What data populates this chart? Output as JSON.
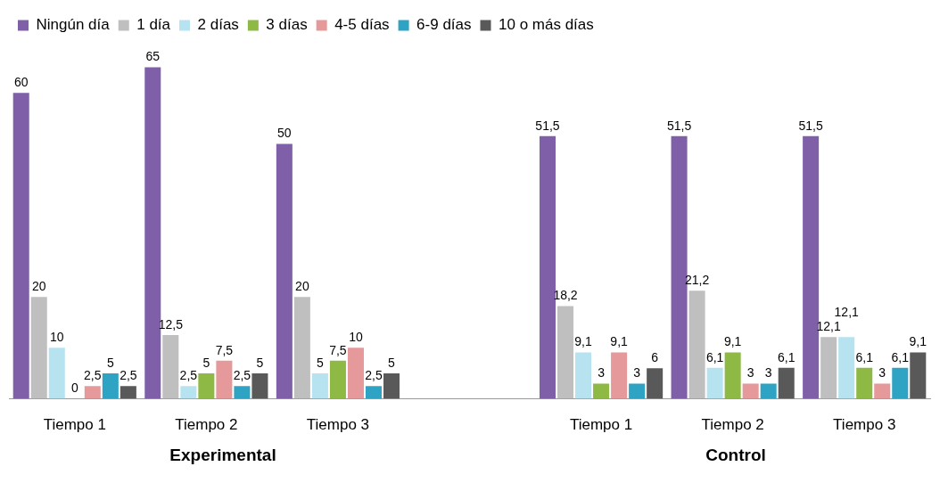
{
  "chart_data": {
    "type": "bar",
    "categories": [
      "Tiempo 1",
      "Tiempo 2",
      "Tiempo 3",
      null,
      "Tiempo 1",
      "Tiempo 2",
      "Tiempo 3"
    ],
    "series": [
      {
        "name": "Ningún día",
        "color": "#7f5fa8",
        "values": [
          60,
          65,
          50,
          null,
          51.5,
          51.5,
          51.5
        ],
        "value_labels": [
          "60",
          "65",
          "50",
          null,
          "51,5",
          "51,5",
          "51,5"
        ]
      },
      {
        "name": "1 día",
        "color": "#bfbfbf",
        "values": [
          20,
          12.5,
          20,
          null,
          18.2,
          21.2,
          12.1
        ],
        "value_labels": [
          "20",
          "12,5",
          "20",
          null,
          "18,2",
          "21,2",
          "12,1"
        ]
      },
      {
        "name": "2 días",
        "color": "#b7e3f0",
        "values": [
          10,
          2.5,
          5,
          null,
          9.1,
          6.1,
          12.1
        ],
        "value_labels": [
          "10",
          "2,5",
          "5",
          null,
          "9,1",
          "6,1",
          "12,1"
        ]
      },
      {
        "name": "3 días",
        "color": "#8db944",
        "values": [
          0,
          5,
          7.5,
          null,
          3,
          9.1,
          6.1
        ],
        "value_labels": [
          "0",
          "5",
          "7,5",
          null,
          "3",
          "9,1",
          "6,1"
        ]
      },
      {
        "name": "4-5 días",
        "color": "#e6999a",
        "values": [
          2.5,
          7.5,
          10,
          null,
          9.1,
          3,
          3
        ],
        "value_labels": [
          "2,5",
          "7,5",
          "10",
          null,
          "9,1",
          "3",
          "3"
        ]
      },
      {
        "name": "6-9 días",
        "color": "#2ea3c4",
        "values": [
          5,
          2.5,
          2.5,
          null,
          3,
          3,
          6.1
        ],
        "value_labels": [
          "5",
          "2,5",
          "2,5",
          null,
          "3",
          "3",
          "6,1"
        ]
      },
      {
        "name": "10 o más días",
        "color": "#595959",
        "values": [
          2.5,
          5,
          5,
          null,
          6,
          6.1,
          9.1
        ],
        "value_labels": [
          "2,5",
          "5",
          "5",
          null,
          "6",
          "6,1",
          "9,1"
        ]
      }
    ],
    "legend": "top",
    "grid": false,
    "tick_labels": "x",
    "annotations": [
      "Experimental",
      "Control"
    ]
  }
}
